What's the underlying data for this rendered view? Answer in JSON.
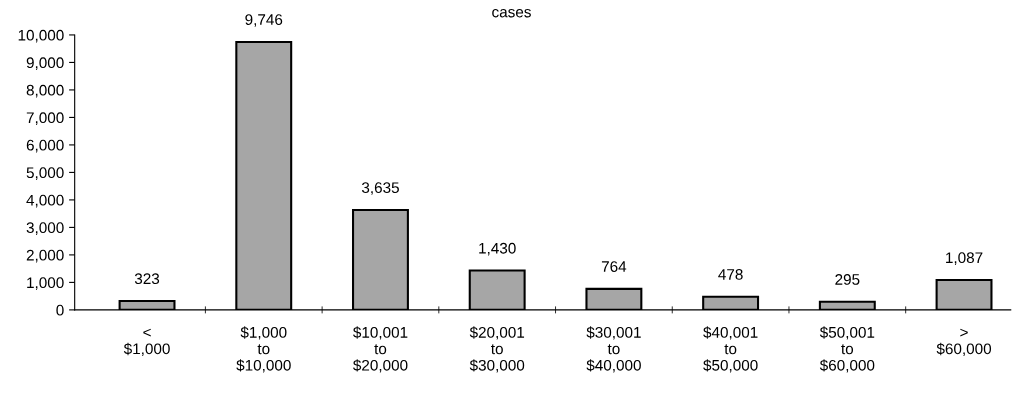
{
  "chart_data": {
    "type": "bar",
    "title": "cases",
    "categories": [
      "<\n$1,000",
      "$1,000\nto\n$10,000",
      "$10,001\nto\n$20,000",
      "$20,001\nto\n$30,000",
      "$30,001\nto\n$40,000",
      "$40,001\nto\n$50,000",
      "$50,001\nto\n$60,000",
      ">\n$60,000"
    ],
    "values": [
      323,
      9746,
      3635,
      1430,
      764,
      478,
      295,
      1087
    ],
    "value_labels": [
      "323",
      "9,746",
      "3,635",
      "1,430",
      "764",
      "478",
      "295",
      "1,087"
    ],
    "color": "#a6a6a6",
    "ylim": [
      0,
      10000
    ],
    "yticks": [
      {
        "value": 0,
        "label": "0"
      },
      {
        "value": 1000,
        "label": "1,000"
      },
      {
        "value": 2000,
        "label": "2,000"
      },
      {
        "value": 3000,
        "label": "3,000"
      },
      {
        "value": 4000,
        "label": "4,000"
      },
      {
        "value": 5000,
        "label": "5,000"
      },
      {
        "value": 6000,
        "label": "6,000"
      },
      {
        "value": 7000,
        "label": "7,000"
      },
      {
        "value": 8000,
        "label": "8,000"
      },
      {
        "value": 9000,
        "label": "9,000"
      },
      {
        "value": 10000,
        "label": "10,000"
      }
    ],
    "grid": false,
    "legend": false
  }
}
